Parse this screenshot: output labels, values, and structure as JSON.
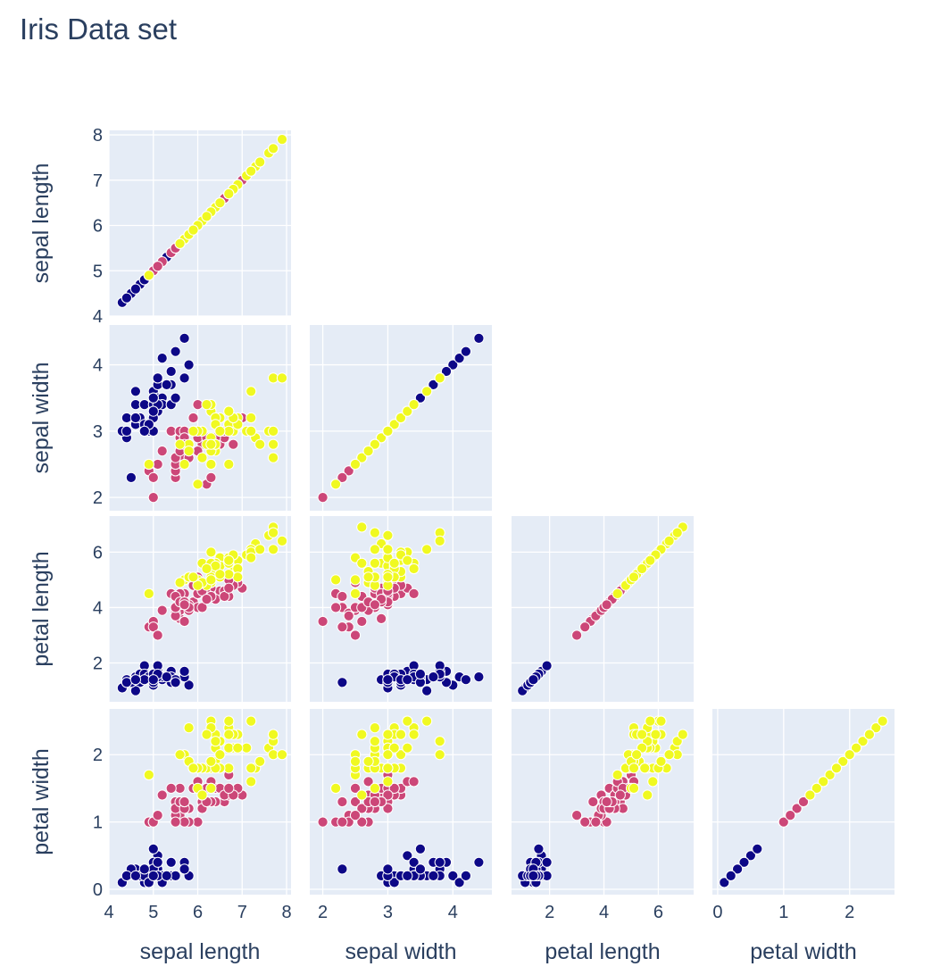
{
  "chart_data": {
    "type": "scatter",
    "subtype": "scatter-matrix",
    "title": "Iris Data set",
    "dimensions": [
      "sepal length",
      "sepal width",
      "petal length",
      "petal width"
    ],
    "diagonal_visible": true,
    "upper_half_visible": false,
    "axis_ranges": {
      "sepal length": [
        4.0,
        8.1
      ],
      "sepal width": [
        1.8,
        4.6
      ],
      "petal length": [
        0.6,
        7.3
      ],
      "petal width": [
        -0.08,
        2.68
      ]
    },
    "ticks": {
      "sepal length": [
        4,
        5,
        6,
        7,
        8
      ],
      "sepal width": [
        2,
        3,
        4
      ],
      "petal length": [
        2,
        4,
        6
      ],
      "petal width": [
        0,
        1,
        2
      ]
    },
    "grid": true,
    "legend": "none",
    "colors": {
      "setosa": "#0d0887",
      "versicolor": "#cc4778",
      "virginica": "#f0f921",
      "plot_bg": "#e5ecf6",
      "grid": "#ffffff",
      "marker_edge": "#ffffff",
      "text": "#2a3f5f"
    },
    "series": [
      {
        "color": "#0d0887",
        "points": [
          [
            5.1,
            3.5,
            1.4,
            0.2
          ],
          [
            4.9,
            3.0,
            1.4,
            0.2
          ],
          [
            4.7,
            3.2,
            1.3,
            0.2
          ],
          [
            4.6,
            3.1,
            1.5,
            0.2
          ],
          [
            5.0,
            3.6,
            1.4,
            0.2
          ],
          [
            5.4,
            3.9,
            1.7,
            0.4
          ],
          [
            4.6,
            3.4,
            1.4,
            0.3
          ],
          [
            5.0,
            3.4,
            1.5,
            0.2
          ],
          [
            4.4,
            2.9,
            1.4,
            0.2
          ],
          [
            4.9,
            3.1,
            1.5,
            0.1
          ],
          [
            5.4,
            3.7,
            1.5,
            0.2
          ],
          [
            4.8,
            3.4,
            1.6,
            0.2
          ],
          [
            4.8,
            3.0,
            1.4,
            0.1
          ],
          [
            4.3,
            3.0,
            1.1,
            0.1
          ],
          [
            5.8,
            4.0,
            1.2,
            0.2
          ],
          [
            5.7,
            4.4,
            1.5,
            0.4
          ],
          [
            5.4,
            3.9,
            1.3,
            0.4
          ],
          [
            5.1,
            3.5,
            1.4,
            0.3
          ],
          [
            5.7,
            3.8,
            1.7,
            0.3
          ],
          [
            5.1,
            3.8,
            1.5,
            0.3
          ],
          [
            5.4,
            3.4,
            1.7,
            0.2
          ],
          [
            5.1,
            3.7,
            1.5,
            0.4
          ],
          [
            4.6,
            3.6,
            1.0,
            0.2
          ],
          [
            5.1,
            3.3,
            1.7,
            0.5
          ],
          [
            4.8,
            3.4,
            1.9,
            0.2
          ],
          [
            5.0,
            3.0,
            1.6,
            0.2
          ],
          [
            5.0,
            3.4,
            1.6,
            0.4
          ],
          [
            5.2,
            3.5,
            1.5,
            0.2
          ],
          [
            5.2,
            3.4,
            1.4,
            0.2
          ],
          [
            4.7,
            3.2,
            1.6,
            0.2
          ],
          [
            4.8,
            3.1,
            1.6,
            0.2
          ],
          [
            5.4,
            3.4,
            1.5,
            0.4
          ],
          [
            5.2,
            4.1,
            1.5,
            0.1
          ],
          [
            5.5,
            4.2,
            1.4,
            0.2
          ],
          [
            4.9,
            3.1,
            1.5,
            0.1
          ],
          [
            5.0,
            3.2,
            1.2,
            0.2
          ],
          [
            5.5,
            3.5,
            1.3,
            0.2
          ],
          [
            4.9,
            3.1,
            1.5,
            0.1
          ],
          [
            4.4,
            3.0,
            1.3,
            0.2
          ],
          [
            5.1,
            3.4,
            1.5,
            0.2
          ],
          [
            5.0,
            3.5,
            1.3,
            0.3
          ],
          [
            4.5,
            2.3,
            1.3,
            0.3
          ],
          [
            4.4,
            3.2,
            1.3,
            0.2
          ],
          [
            5.0,
            3.5,
            1.6,
            0.6
          ],
          [
            5.1,
            3.8,
            1.9,
            0.4
          ],
          [
            4.8,
            3.0,
            1.4,
            0.3
          ],
          [
            5.1,
            3.8,
            1.6,
            0.2
          ],
          [
            4.6,
            3.2,
            1.4,
            0.2
          ],
          [
            5.3,
            3.7,
            1.5,
            0.2
          ],
          [
            5.0,
            3.3,
            1.4,
            0.2
          ]
        ]
      },
      {
        "color": "#cc4778",
        "points": [
          [
            7.0,
            3.2,
            4.7,
            1.4
          ],
          [
            6.4,
            3.2,
            4.5,
            1.5
          ],
          [
            6.9,
            3.1,
            4.9,
            1.5
          ],
          [
            5.5,
            2.3,
            4.0,
            1.3
          ],
          [
            6.5,
            2.8,
            4.6,
            1.5
          ],
          [
            5.7,
            2.8,
            4.5,
            1.3
          ],
          [
            6.3,
            3.3,
            4.7,
            1.6
          ],
          [
            4.9,
            2.4,
            3.3,
            1.0
          ],
          [
            6.6,
            2.9,
            4.6,
            1.3
          ],
          [
            5.2,
            2.7,
            3.9,
            1.4
          ],
          [
            5.0,
            2.0,
            3.5,
            1.0
          ],
          [
            5.9,
            3.0,
            4.2,
            1.5
          ],
          [
            6.0,
            2.2,
            4.0,
            1.0
          ],
          [
            6.1,
            2.9,
            4.7,
            1.4
          ],
          [
            5.6,
            2.9,
            3.6,
            1.3
          ],
          [
            6.7,
            3.1,
            4.4,
            1.4
          ],
          [
            5.6,
            3.0,
            4.5,
            1.5
          ],
          [
            5.8,
            2.7,
            4.1,
            1.0
          ],
          [
            6.2,
            2.2,
            4.5,
            1.5
          ],
          [
            5.6,
            2.5,
            3.9,
            1.1
          ],
          [
            5.9,
            3.2,
            4.8,
            1.8
          ],
          [
            6.1,
            2.8,
            4.0,
            1.3
          ],
          [
            6.3,
            2.5,
            4.9,
            1.5
          ],
          [
            6.1,
            2.8,
            4.7,
            1.2
          ],
          [
            6.4,
            2.9,
            4.3,
            1.3
          ],
          [
            6.6,
            3.0,
            4.4,
            1.4
          ],
          [
            6.8,
            2.8,
            4.8,
            1.4
          ],
          [
            6.7,
            3.0,
            5.0,
            1.7
          ],
          [
            6.0,
            2.9,
            4.5,
            1.5
          ],
          [
            5.7,
            2.6,
            3.5,
            1.0
          ],
          [
            5.5,
            2.4,
            3.8,
            1.1
          ],
          [
            5.5,
            2.4,
            3.7,
            1.0
          ],
          [
            5.8,
            2.7,
            3.9,
            1.2
          ],
          [
            6.0,
            2.7,
            5.1,
            1.6
          ],
          [
            5.4,
            3.0,
            4.5,
            1.5
          ],
          [
            6.0,
            3.4,
            4.5,
            1.6
          ],
          [
            6.7,
            3.1,
            4.7,
            1.5
          ],
          [
            6.3,
            2.3,
            4.4,
            1.3
          ],
          [
            5.6,
            3.0,
            4.1,
            1.3
          ],
          [
            5.5,
            2.5,
            4.0,
            1.3
          ],
          [
            5.5,
            2.6,
            4.4,
            1.2
          ],
          [
            6.1,
            3.0,
            4.6,
            1.4
          ],
          [
            5.8,
            2.6,
            4.0,
            1.2
          ],
          [
            5.0,
            2.3,
            3.3,
            1.0
          ],
          [
            5.6,
            2.7,
            4.2,
            1.3
          ],
          [
            5.7,
            3.0,
            4.2,
            1.2
          ],
          [
            5.7,
            2.9,
            4.2,
            1.3
          ],
          [
            6.2,
            2.9,
            4.3,
            1.3
          ],
          [
            5.1,
            2.5,
            3.0,
            1.1
          ],
          [
            5.7,
            2.8,
            4.1,
            1.3
          ]
        ]
      },
      {
        "color": "#f0f921",
        "points": [
          [
            6.3,
            3.3,
            6.0,
            2.5
          ],
          [
            5.8,
            2.7,
            5.1,
            1.9
          ],
          [
            7.1,
            3.0,
            5.9,
            2.1
          ],
          [
            6.3,
            2.9,
            5.6,
            1.8
          ],
          [
            6.5,
            3.0,
            5.8,
            2.2
          ],
          [
            7.6,
            3.0,
            6.6,
            2.1
          ],
          [
            4.9,
            2.5,
            4.5,
            1.7
          ],
          [
            7.3,
            2.9,
            6.3,
            1.8
          ],
          [
            6.7,
            2.5,
            5.8,
            1.8
          ],
          [
            7.2,
            3.6,
            6.1,
            2.5
          ],
          [
            6.5,
            3.2,
            5.1,
            2.0
          ],
          [
            6.4,
            2.7,
            5.3,
            1.9
          ],
          [
            6.8,
            3.0,
            5.5,
            2.1
          ],
          [
            5.7,
            2.5,
            5.0,
            2.0
          ],
          [
            5.8,
            2.8,
            5.1,
            2.4
          ],
          [
            6.4,
            3.2,
            5.3,
            2.3
          ],
          [
            6.5,
            3.0,
            5.5,
            1.8
          ],
          [
            7.7,
            3.8,
            6.7,
            2.2
          ],
          [
            7.7,
            2.6,
            6.9,
            2.3
          ],
          [
            6.0,
            2.2,
            5.0,
            1.5
          ],
          [
            6.9,
            3.2,
            5.7,
            2.3
          ],
          [
            5.6,
            2.8,
            4.9,
            2.0
          ],
          [
            7.7,
            2.8,
            6.7,
            2.0
          ],
          [
            6.3,
            2.7,
            4.9,
            1.8
          ],
          [
            6.7,
            3.3,
            5.7,
            2.1
          ],
          [
            7.2,
            3.2,
            6.0,
            1.8
          ],
          [
            6.2,
            2.8,
            4.8,
            1.8
          ],
          [
            6.1,
            3.0,
            4.9,
            1.8
          ],
          [
            6.4,
            2.8,
            5.6,
            2.1
          ],
          [
            7.2,
            3.0,
            5.8,
            1.6
          ],
          [
            7.4,
            2.8,
            6.1,
            1.9
          ],
          [
            7.9,
            3.8,
            6.4,
            2.0
          ],
          [
            6.4,
            2.8,
            5.6,
            2.2
          ],
          [
            6.3,
            2.8,
            5.1,
            1.5
          ],
          [
            6.1,
            2.6,
            5.6,
            1.4
          ],
          [
            7.7,
            3.0,
            6.1,
            2.3
          ],
          [
            6.3,
            3.4,
            5.6,
            2.4
          ],
          [
            6.4,
            3.1,
            5.5,
            1.8
          ],
          [
            6.0,
            3.0,
            4.8,
            1.8
          ],
          [
            6.9,
            3.1,
            5.4,
            2.1
          ],
          [
            6.7,
            3.1,
            5.6,
            2.4
          ],
          [
            6.9,
            3.1,
            5.1,
            2.3
          ],
          [
            5.8,
            2.7,
            5.1,
            1.9
          ],
          [
            6.8,
            3.2,
            5.9,
            2.3
          ],
          [
            6.7,
            3.3,
            5.7,
            2.5
          ],
          [
            6.7,
            3.0,
            5.2,
            2.3
          ],
          [
            6.3,
            2.5,
            5.0,
            1.9
          ],
          [
            6.5,
            3.0,
            5.2,
            2.0
          ],
          [
            6.2,
            3.4,
            5.4,
            2.3
          ],
          [
            5.9,
            3.0,
            5.1,
            1.8
          ]
        ]
      }
    ]
  }
}
